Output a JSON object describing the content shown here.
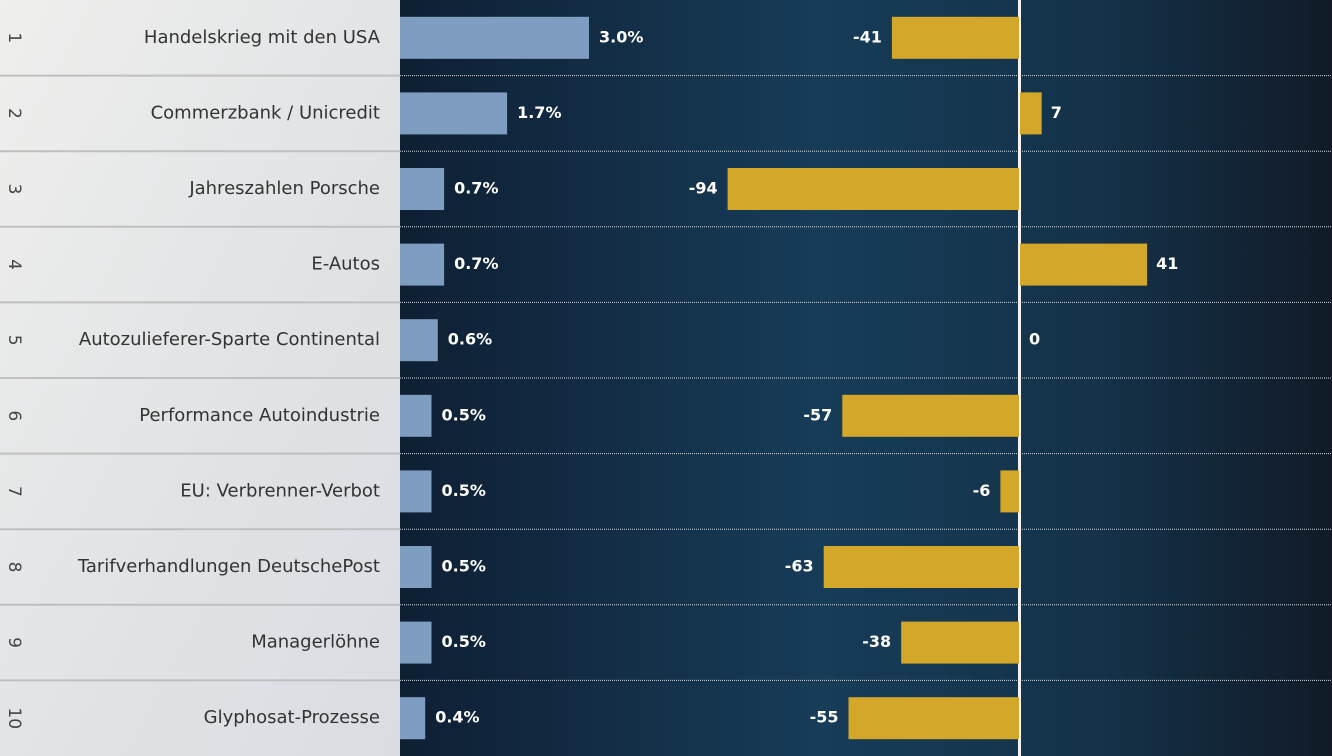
{
  "chart_data": {
    "type": "bar",
    "ranks": [
      1,
      2,
      3,
      4,
      5,
      6,
      7,
      8,
      9,
      10
    ],
    "categories": [
      "Handelskrieg mit den USA",
      "Commerzbank / Unicredit",
      "Jahreszahlen Porsche",
      "E-Autos",
      "Autozulieferer-Sparte Continental",
      "Performance Autoindustrie",
      "EU: Verbrenner-Verbot",
      "Tarifverhandlungen DeutschePost",
      "Managerlöhne",
      "Glyphosat-Prozesse"
    ],
    "series": [
      {
        "color": "#7f9cc1",
        "values": [
          3.0,
          1.7,
          0.7,
          0.7,
          0.6,
          0.5,
          0.5,
          0.5,
          0.5,
          0.4
        ],
        "value_labels": [
          "3.0%",
          "1.7%",
          "0.7%",
          "0.7%",
          "0.6%",
          "0.5%",
          "0.5%",
          "0.5%",
          "0.5%",
          "0.4%"
        ]
      },
      {
        "color": "#d3a72a",
        "values": [
          -41,
          7,
          -94,
          41,
          0,
          -57,
          -6,
          -63,
          -38,
          -55
        ]
      }
    ]
  }
}
